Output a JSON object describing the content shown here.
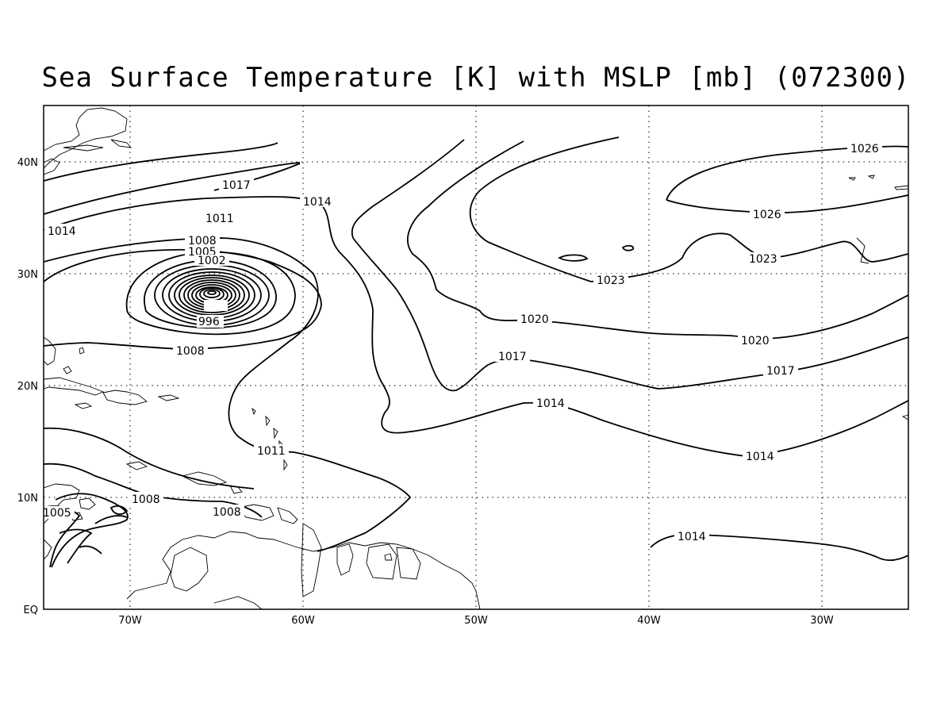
{
  "title": "Sea Surface Temperature [K] with MSLP [mb] (072300)",
  "axes": {
    "lon_labels": [
      "70W",
      "60W",
      "50W",
      "40W",
      "30W"
    ],
    "lat_labels": [
      "EQ",
      "10N",
      "20N",
      "30N",
      "40N"
    ]
  },
  "map_extent": {
    "lon": [
      -75,
      -25
    ],
    "lat": [
      0,
      45
    ]
  },
  "contour_labels": [
    "1026",
    "1026",
    "1023",
    "1023",
    "1020",
    "1020",
    "1017",
    "1017",
    "1017",
    "1014",
    "1014",
    "1014",
    "1014",
    "1014",
    "1011",
    "1011",
    "1008",
    "1005",
    "1002",
    "996",
    "1008",
    "1008",
    "1008",
    "1005"
  ]
}
